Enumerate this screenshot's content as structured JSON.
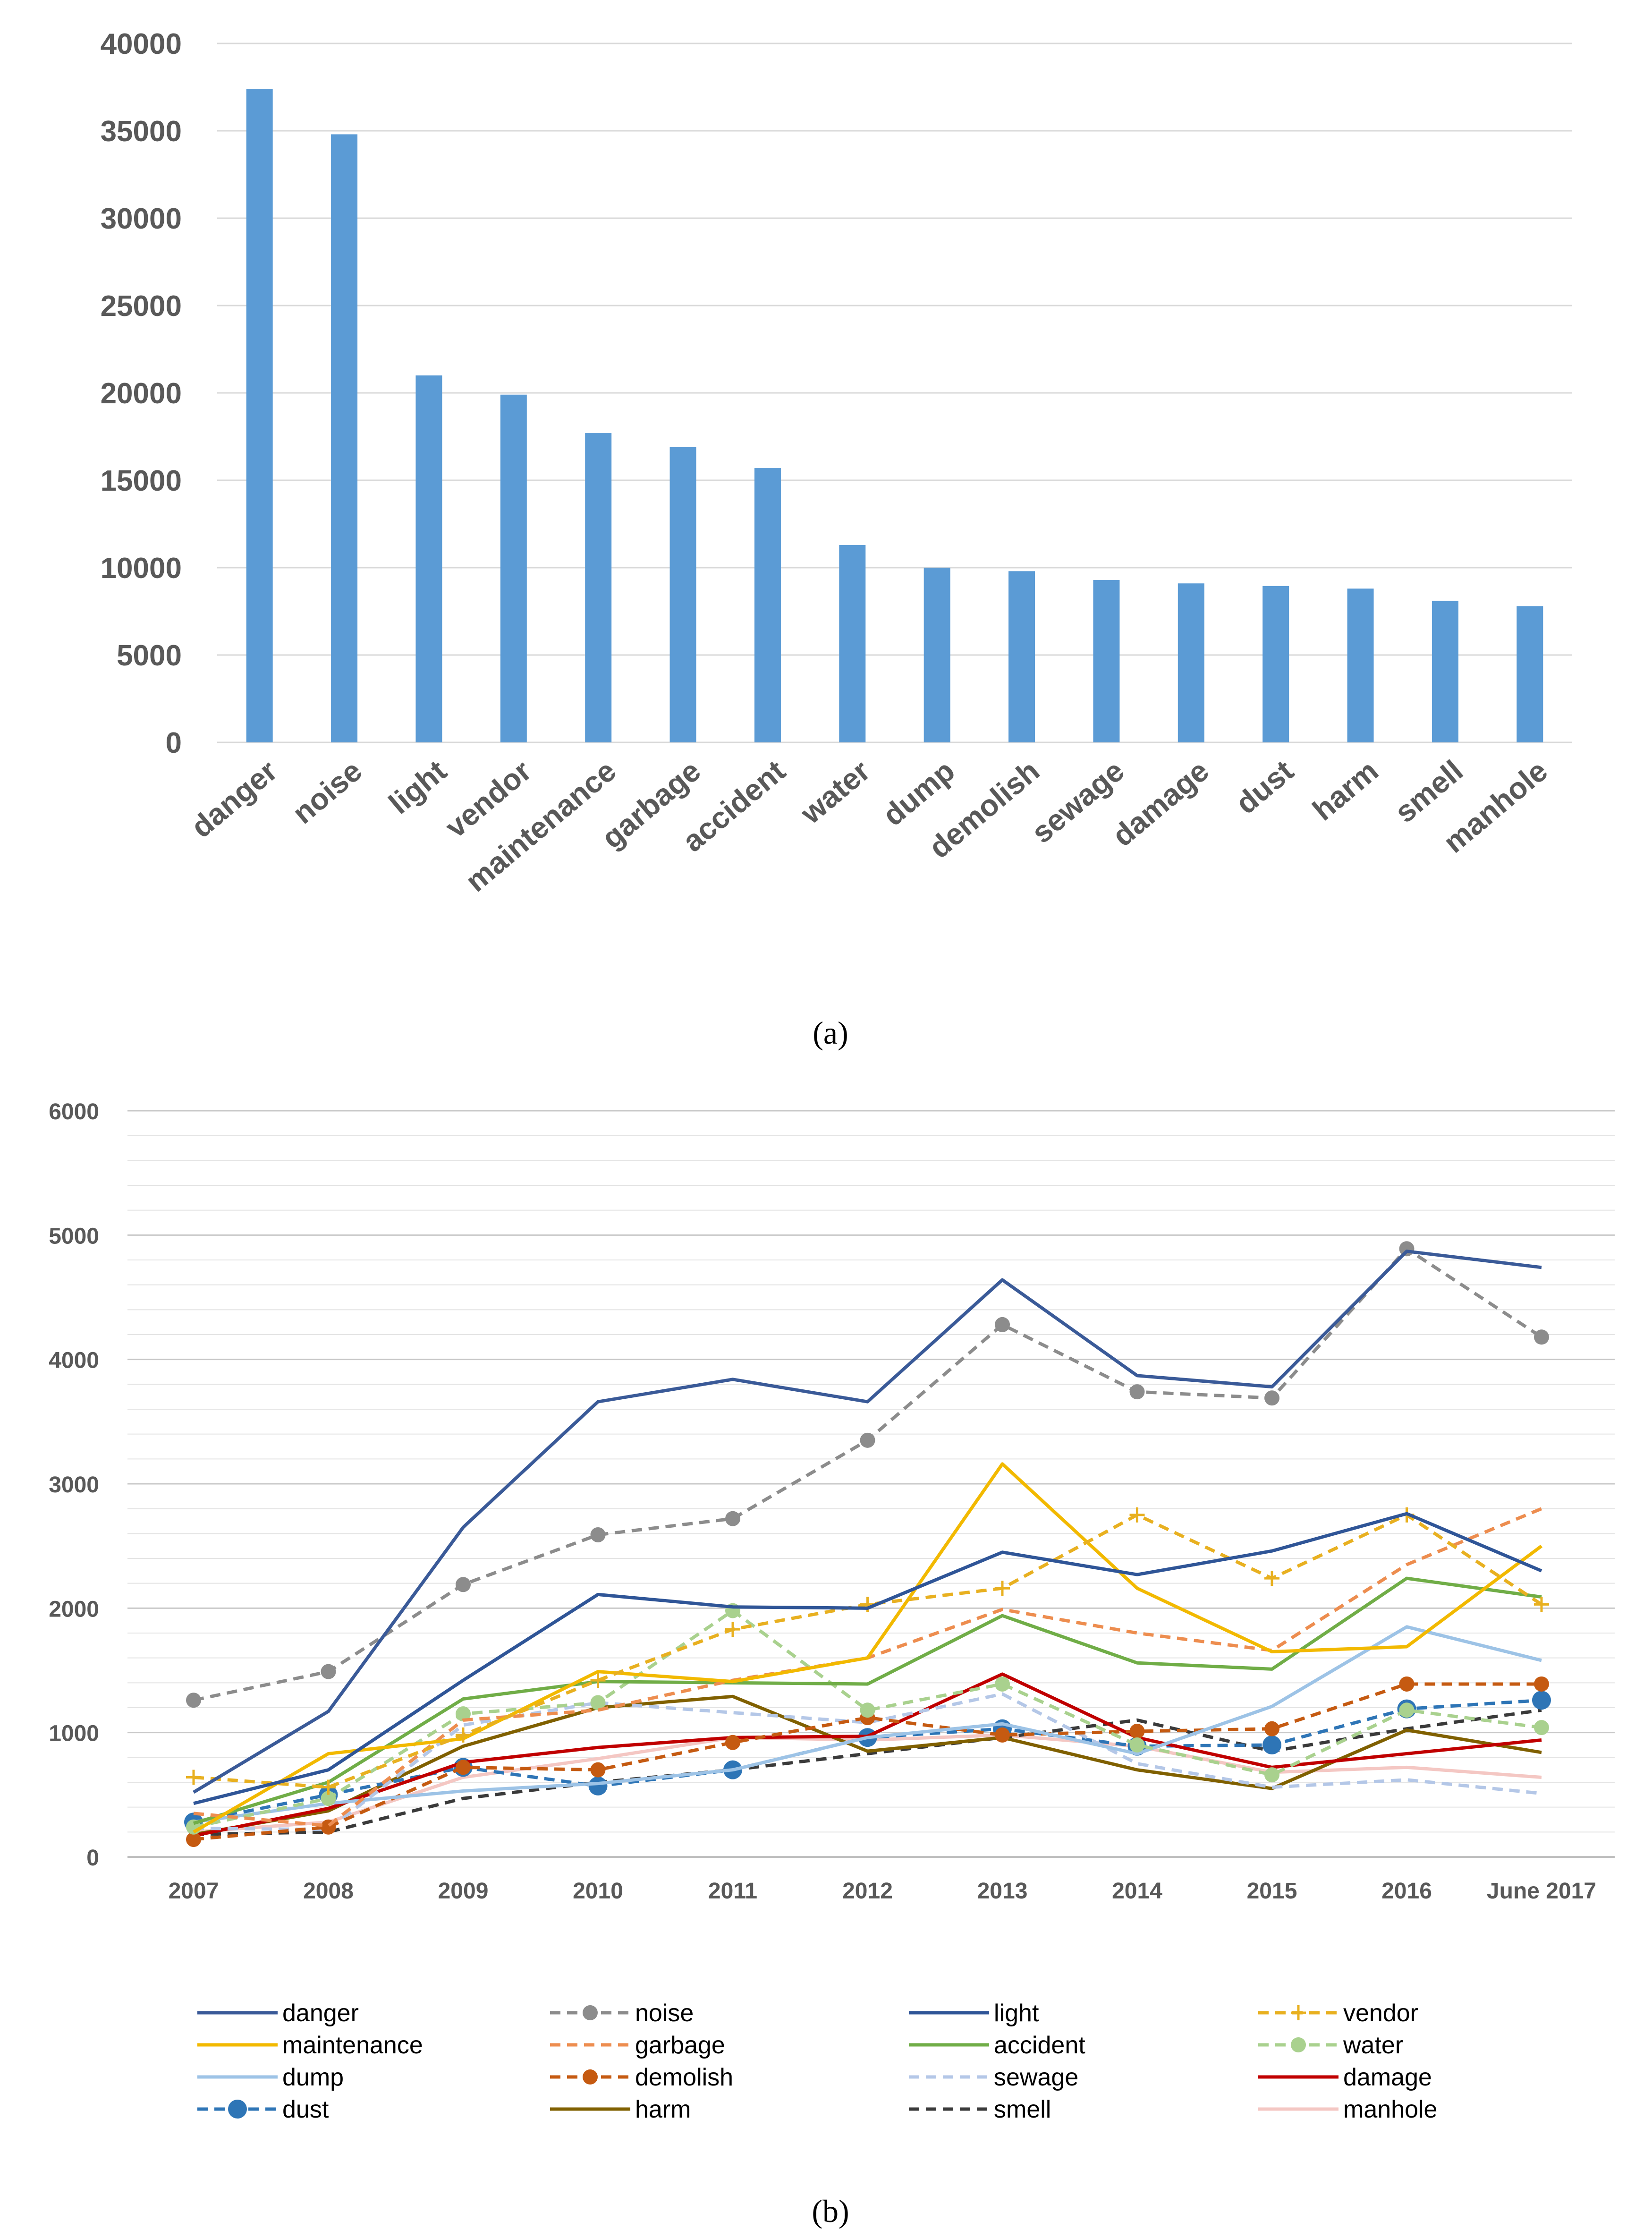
{
  "chart_data": [
    {
      "type": "bar",
      "panel": "a",
      "caption": "(a)",
      "categories": [
        "danger",
        "noise",
        "light",
        "vendor",
        "maintenance",
        "garbage",
        "accident",
        "water",
        "dump",
        "demolish",
        "sewage",
        "damage",
        "dust",
        "harm",
        "smell",
        "manhole"
      ],
      "values": [
        37400,
        34800,
        21000,
        19900,
        17700,
        16900,
        15700,
        11300,
        10000,
        9800,
        9300,
        9100,
        8950,
        8800,
        8100,
        7800
      ],
      "ylim": [
        0,
        40000
      ],
      "yticks": [
        "0",
        "5000",
        "10000",
        "15000",
        "20000",
        "25000",
        "30000",
        "35000",
        "40000"
      ],
      "bar_color": "#5B9BD5",
      "grid": true
    },
    {
      "type": "line",
      "panel": "b",
      "caption": "(b)",
      "categories": [
        "2007",
        "2008",
        "2009",
        "2010",
        "2011",
        "2012",
        "2013",
        "2014",
        "2015",
        "2016",
        "June 2017"
      ],
      "ylim": [
        0,
        6000
      ],
      "yticks": [
        "0",
        "1000",
        "2000",
        "3000",
        "4000",
        "5000",
        "6000"
      ],
      "grid": true,
      "legend_position": "bottom",
      "series": [
        {
          "name": "danger",
          "color": "#3A5A98",
          "dash": "solid",
          "marker": "none",
          "values": [
            520,
            1170,
            2650,
            3660,
            3840,
            3660,
            4640,
            3870,
            3780,
            4870,
            4740
          ]
        },
        {
          "name": "noise",
          "color": "#8C8C8C",
          "dash": "dashed",
          "marker": "dot",
          "values": [
            1260,
            1490,
            2190,
            2590,
            2720,
            3350,
            4280,
            3740,
            3690,
            4890,
            4180
          ]
        },
        {
          "name": "light",
          "color": "#2F5597",
          "dash": "solid",
          "marker": "none",
          "values": [
            430,
            700,
            1420,
            2110,
            2010,
            2000,
            2450,
            2270,
            2460,
            2760,
            2300
          ]
        },
        {
          "name": "vendor",
          "color": "#E8B020",
          "dash": "dashed",
          "marker": "plus",
          "values": [
            640,
            560,
            980,
            1420,
            1830,
            2030,
            2160,
            2750,
            2240,
            2750,
            2030
          ]
        },
        {
          "name": "maintenance",
          "color": "#F2B900",
          "dash": "solid",
          "marker": "none",
          "values": [
            200,
            830,
            950,
            1490,
            1410,
            1600,
            3160,
            2160,
            1650,
            1690,
            2500
          ]
        },
        {
          "name": "garbage",
          "color": "#ED8D4F",
          "dash": "dashed",
          "marker": "none",
          "values": [
            350,
            250,
            1100,
            1180,
            1420,
            1600,
            1990,
            1800,
            1660,
            2350,
            2800
          ]
        },
        {
          "name": "accident",
          "color": "#70AD47",
          "dash": "solid",
          "marker": "none",
          "values": [
            270,
            600,
            1270,
            1410,
            1400,
            1390,
            1940,
            1560,
            1510,
            2240,
            2090
          ]
        },
        {
          "name": "water",
          "color": "#A9D18E",
          "dash": "dashed",
          "marker": "dot",
          "values": [
            240,
            470,
            1150,
            1240,
            1980,
            1180,
            1390,
            900,
            660,
            1180,
            1040
          ]
        },
        {
          "name": "dump",
          "color": "#9DC3E6",
          "dash": "solid",
          "marker": "none",
          "values": [
            280,
            430,
            530,
            590,
            700,
            960,
            1070,
            830,
            1210,
            1850,
            1580
          ]
        },
        {
          "name": "demolish",
          "color": "#C55A11",
          "dash": "dashed",
          "marker": "dot",
          "values": [
            140,
            240,
            720,
            700,
            920,
            1120,
            980,
            1010,
            1030,
            1390,
            1390
          ]
        },
        {
          "name": "sewage",
          "color": "#B4C7E7",
          "dash": "dashed",
          "marker": "none",
          "values": [
            230,
            220,
            1060,
            1240,
            1160,
            1080,
            1310,
            750,
            560,
            620,
            510
          ]
        },
        {
          "name": "damage",
          "color": "#C00000",
          "dash": "solid",
          "marker": "none",
          "values": [
            170,
            390,
            760,
            880,
            960,
            970,
            1470,
            960,
            720,
            830,
            940
          ]
        },
        {
          "name": "dust",
          "color": "#2E75B6",
          "dash": "dashed",
          "marker": "bigdot",
          "values": [
            280,
            500,
            720,
            570,
            700,
            960,
            1030,
            890,
            900,
            1190,
            1260
          ]
        },
        {
          "name": "harm",
          "color": "#806000",
          "dash": "solid",
          "marker": "none",
          "values": [
            180,
            370,
            890,
            1200,
            1290,
            850,
            960,
            700,
            550,
            1020,
            840
          ]
        },
        {
          "name": "smell",
          "color": "#3A3A3A",
          "dash": "dashed",
          "marker": "none",
          "values": [
            180,
            200,
            470,
            600,
            700,
            830,
            960,
            1100,
            850,
            1030,
            1180
          ]
        },
        {
          "name": "manhole",
          "color": "#F4C7C3",
          "dash": "solid",
          "marker": "none",
          "values": [
            200,
            280,
            640,
            790,
            960,
            940,
            980,
            890,
            680,
            720,
            640
          ]
        }
      ]
    }
  ]
}
